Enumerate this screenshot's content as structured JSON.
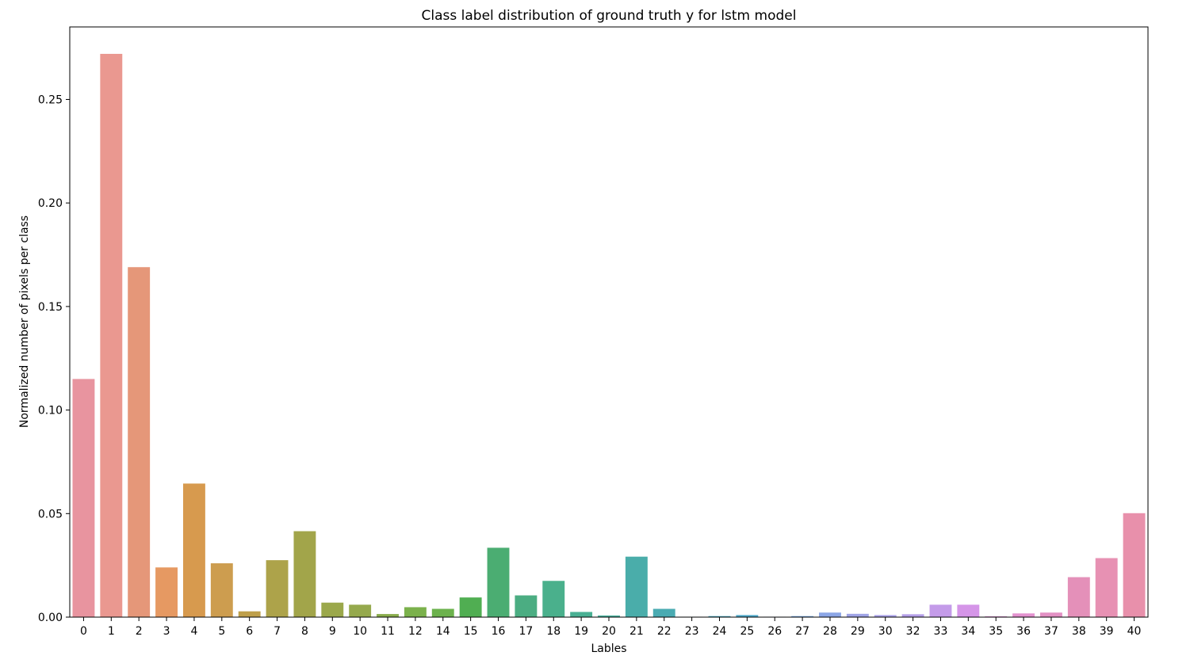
{
  "chart_data": {
    "type": "bar",
    "title": "Class label distribution of ground truth y for lstm model",
    "xlabel": "Lables",
    "ylabel": "Normalized number of pixels per class",
    "ylim": [
      0,
      0.285
    ],
    "yticks": [
      "0.00",
      "0.05",
      "0.10",
      "0.15",
      "0.20",
      "0.25"
    ],
    "grid": false,
    "legend": "none",
    "categories": [
      "0",
      "1",
      "2",
      "3",
      "4",
      "5",
      "6",
      "7",
      "8",
      "9",
      "10",
      "11",
      "12",
      "14",
      "15",
      "16",
      "17",
      "18",
      "19",
      "20",
      "21",
      "22",
      "23",
      "24",
      "25",
      "26",
      "27",
      "28",
      "29",
      "30",
      "32",
      "33",
      "34",
      "35",
      "36",
      "37",
      "38",
      "39",
      "40"
    ],
    "values": [
      0.115,
      0.272,
      0.169,
      0.024,
      0.0645,
      0.026,
      0.0028,
      0.0275,
      0.0415,
      0.007,
      0.006,
      0.0015,
      0.0048,
      0.004,
      0.0095,
      0.0335,
      0.0105,
      0.0175,
      0.0025,
      0.0008,
      0.0292,
      0.004,
      0.0002,
      0.0005,
      0.001,
      0.0002,
      0.0005,
      0.0022,
      0.0016,
      0.001,
      0.0014,
      0.006,
      0.006,
      0.0004,
      0.0018,
      0.0022,
      0.0193,
      0.0285,
      0.0502
    ],
    "colors": [
      "#e8949f",
      "#ea9890",
      "#e59779",
      "#e69962",
      "#d79a4e",
      "#cd9d4f",
      "#be9f4a",
      "#ada34a",
      "#a2a54a",
      "#9ba84b",
      "#95a94d",
      "#8aad4d",
      "#7bb14c",
      "#6cb24d",
      "#50ae52",
      "#4bad72",
      "#4bad82",
      "#4ab08c",
      "#49b093",
      "#48b09c",
      "#4aadaa",
      "#4aabb2",
      "#4aa9ba",
      "#4ba8c0",
      "#4da7c8",
      "#5ba6d4",
      "#78a6e0",
      "#8ca6e6",
      "#a0a4e6",
      "#aaa2e8",
      "#b49fe8",
      "#c49be9",
      "#d595e8",
      "#df94d9",
      "#e392cf",
      "#e391c4",
      "#e490b9",
      "#e791b3",
      "#e890ab"
    ]
  }
}
